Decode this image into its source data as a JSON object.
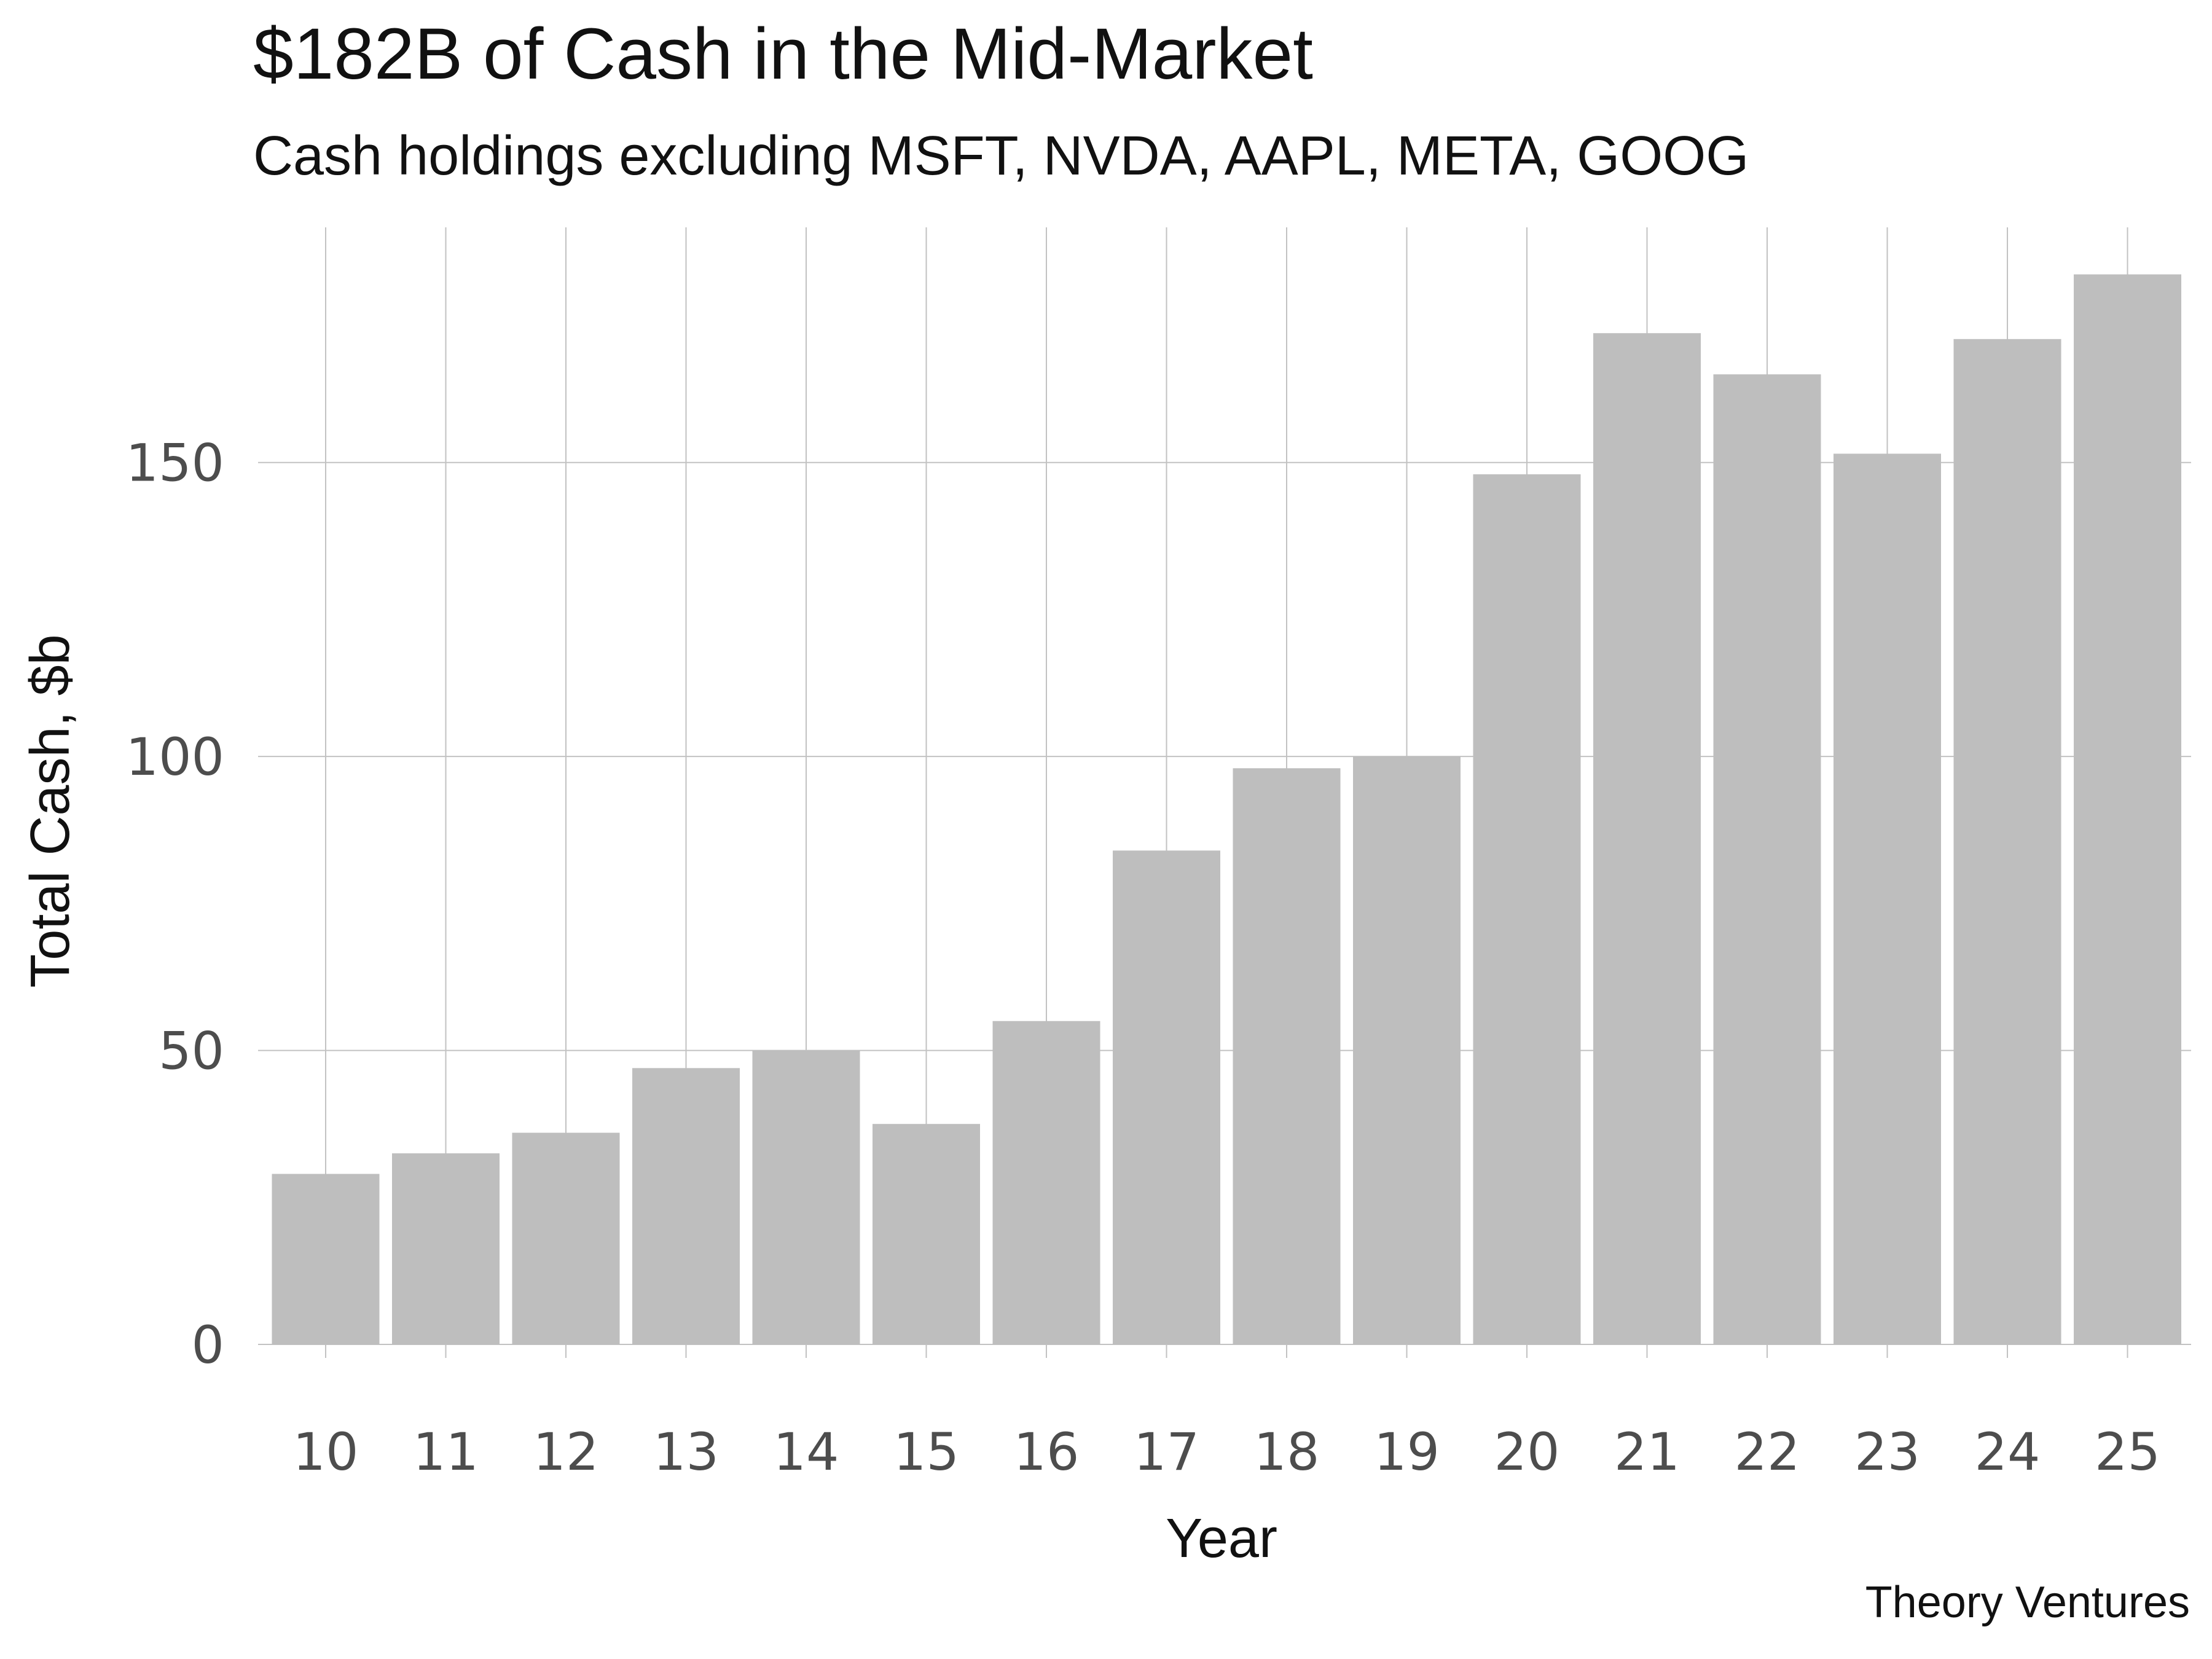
{
  "title": "$182B of Cash in the Mid-Market",
  "subtitle": "Cash holdings excluding MSFT, NVDA, AAPL, META, GOOG",
  "caption": "Theory Ventures",
  "chart_data": {
    "type": "bar",
    "title": "$182B of Cash in the Mid-Market",
    "subtitle": "Cash holdings excluding MSFT, NVDA, AAPL, META, GOOG",
    "xlabel": "Year",
    "ylabel": "Total Cash, $b",
    "categories": [
      "10",
      "11",
      "12",
      "13",
      "14",
      "15",
      "16",
      "17",
      "18",
      "19",
      "20",
      "21",
      "22",
      "23",
      "24",
      "25"
    ],
    "values": [
      29,
      32.5,
      36,
      47,
      50,
      37.5,
      55,
      84,
      98,
      100,
      148,
      172,
      165,
      151.5,
      171,
      182
    ],
    "ylim": [
      0,
      190
    ],
    "yticks": [
      0,
      50,
      100,
      150
    ],
    "grid": true,
    "legend": "none",
    "colors": {
      "bar": "#bebebe",
      "grid": "#c2c2c2",
      "tick_text": "#4d4d4d",
      "text": "#111111"
    }
  }
}
